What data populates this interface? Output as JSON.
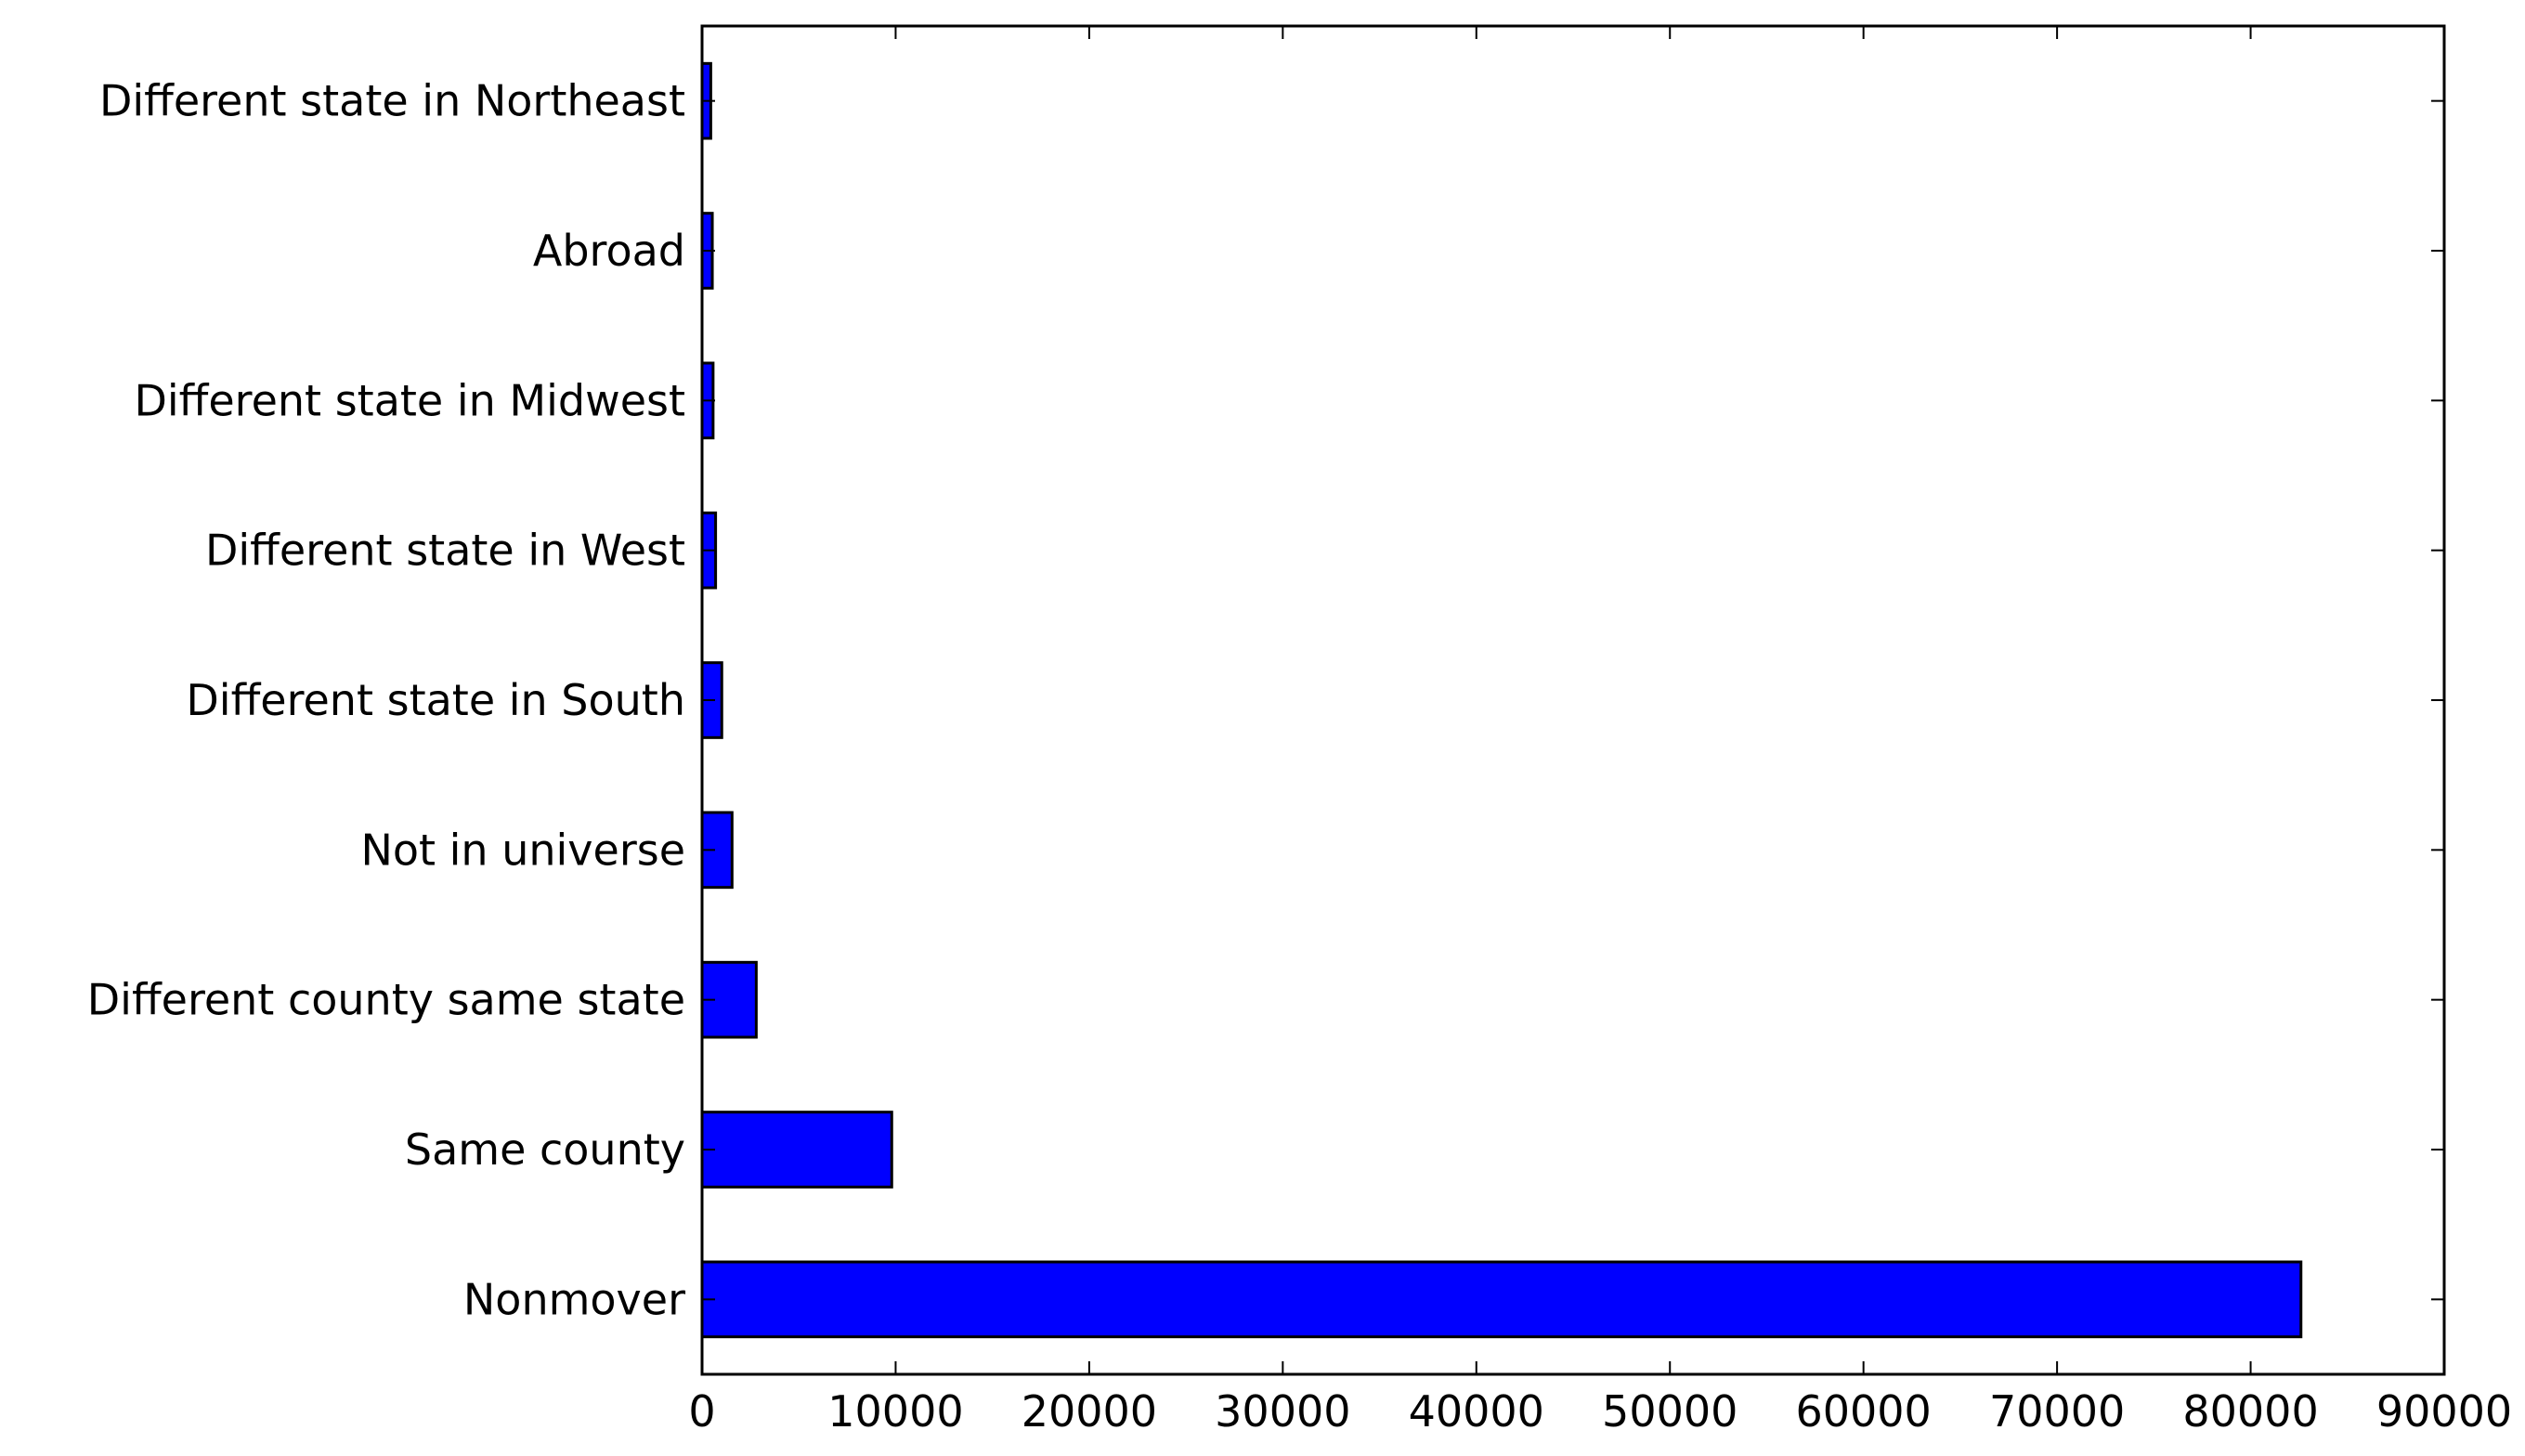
{
  "chart_data": {
    "type": "bar",
    "orientation": "horizontal",
    "title": "",
    "xlabel": "",
    "ylabel": "",
    "categories": [
      "Different state in Northeast",
      "Abroad",
      "Different state in Midwest",
      "Different state in West",
      "Different state in South",
      "Not in universe",
      "Different county same state",
      "Same county",
      "Nonmover"
    ],
    "values": [
      450,
      530,
      570,
      700,
      1020,
      1550,
      2800,
      9800,
      82600
    ],
    "xlim": [
      0,
      90000
    ],
    "xticks": [
      0,
      10000,
      20000,
      30000,
      40000,
      50000,
      60000,
      70000,
      80000,
      90000
    ],
    "xtick_labels": [
      "0",
      "10000",
      "20000",
      "30000",
      "40000",
      "50000",
      "60000",
      "70000",
      "80000",
      "90000"
    ],
    "bar_color": "#0000ff",
    "edge_color": "#000000",
    "grid": false,
    "legend": "none"
  }
}
